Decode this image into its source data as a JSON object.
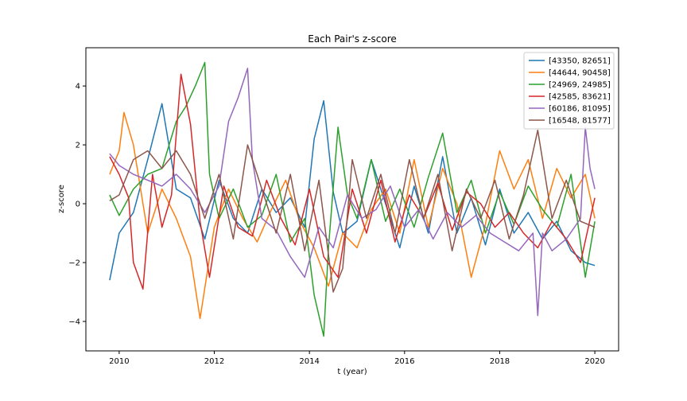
{
  "chart_data": {
    "type": "line",
    "title": "Each Pair's z-score",
    "xlabel": "t (year)",
    "ylabel": "z-score",
    "xlim": [
      2009.3,
      2020.5
    ],
    "ylim": [
      -5.0,
      5.3
    ],
    "xticks": [
      2010,
      2012,
      2014,
      2016,
      2018,
      2020
    ],
    "yticks": [
      -4,
      -2,
      0,
      2,
      4
    ],
    "grid": false,
    "legend_position": "top-right",
    "series": [
      {
        "name": "[43350, 82651]",
        "color": "#1f77b4",
        "x": [
          2009.8,
          2010.0,
          2010.3,
          2010.6,
          2010.9,
          2011.2,
          2011.5,
          2011.8,
          2012.1,
          2012.4,
          2012.7,
          2013.0,
          2013.3,
          2013.6,
          2013.9,
          2014.1,
          2014.3,
          2014.5,
          2014.7,
          2015.0,
          2015.3,
          2015.6,
          2015.9,
          2016.2,
          2016.5,
          2016.8,
          2017.1,
          2017.4,
          2017.7,
          2018.0,
          2018.3,
          2018.6,
          2018.9,
          2019.2,
          2019.5,
          2019.8,
          2020.0
        ],
        "y": [
          -2.6,
          -1.0,
          -0.3,
          1.5,
          3.4,
          0.5,
          0.2,
          -1.2,
          0.8,
          -0.5,
          -1.0,
          0.5,
          -0.3,
          0.2,
          -0.8,
          2.2,
          3.5,
          0.4,
          -1.0,
          -0.6,
          1.5,
          0.0,
          -1.5,
          0.6,
          -1.0,
          1.6,
          -1.0,
          0.2,
          -1.4,
          0.5,
          -1.0,
          -0.3,
          -1.2,
          -0.6,
          -1.6,
          -2.0,
          -2.1
        ]
      },
      {
        "name": "[44644, 90458]",
        "color": "#ff7f0e",
        "x": [
          2009.8,
          2010.0,
          2010.1,
          2010.3,
          2010.6,
          2010.9,
          2011.2,
          2011.5,
          2011.7,
          2012.0,
          2012.3,
          2012.6,
          2012.9,
          2013.2,
          2013.5,
          2013.8,
          2014.1,
          2014.4,
          2014.7,
          2015.0,
          2015.3,
          2015.6,
          2015.9,
          2016.2,
          2016.5,
          2016.8,
          2017.1,
          2017.4,
          2017.7,
          2018.0,
          2018.3,
          2018.6,
          2018.9,
          2019.2,
          2019.5,
          2019.8,
          2020.0
        ],
        "y": [
          1.0,
          1.8,
          3.1,
          2.0,
          -1.0,
          0.5,
          -0.5,
          -1.8,
          -3.9,
          -0.8,
          0.5,
          -0.5,
          -1.3,
          -0.2,
          0.8,
          -0.6,
          -1.5,
          -2.8,
          -1.0,
          -1.5,
          -0.2,
          0.5,
          -1.0,
          1.5,
          -0.8,
          1.2,
          0.0,
          -2.5,
          -0.7,
          1.8,
          0.5,
          1.5,
          -0.5,
          1.2,
          0.2,
          1.0,
          -0.5
        ]
      },
      {
        "name": "[24969, 24985]",
        "color": "#2ca02c",
        "x": [
          2009.8,
          2010.0,
          2010.3,
          2010.6,
          2010.9,
          2011.2,
          2011.4,
          2011.6,
          2011.8,
          2011.9,
          2012.1,
          2012.4,
          2012.7,
          2013.0,
          2013.3,
          2013.6,
          2013.9,
          2014.1,
          2014.3,
          2014.4,
          2014.6,
          2014.8,
          2015.0,
          2015.3,
          2015.6,
          2015.9,
          2016.2,
          2016.5,
          2016.8,
          2016.9,
          2017.1,
          2017.4,
          2017.7,
          2018.0,
          2018.3,
          2018.6,
          2018.9,
          2019.2,
          2019.5,
          2019.8,
          2020.0
        ],
        "y": [
          0.3,
          -0.4,
          0.5,
          1.0,
          1.2,
          2.8,
          3.3,
          4.0,
          4.8,
          1.0,
          -0.5,
          0.5,
          -0.8,
          -0.4,
          1.0,
          -1.3,
          -0.5,
          -3.1,
          -4.5,
          -1.5,
          2.6,
          0.3,
          -0.5,
          1.5,
          -0.6,
          0.5,
          -0.8,
          0.9,
          2.4,
          1.5,
          -0.3,
          0.8,
          -1.0,
          0.4,
          -0.7,
          0.6,
          -0.2,
          -0.8,
          1.0,
          -2.5,
          -0.6
        ]
      },
      {
        "name": "[42585, 83621]",
        "color": "#d62728",
        "x": [
          2009.8,
          2010.0,
          2010.2,
          2010.3,
          2010.5,
          2010.7,
          2010.9,
          2011.1,
          2011.3,
          2011.5,
          2011.7,
          2011.9,
          2012.2,
          2012.5,
          2012.8,
          2013.1,
          2013.4,
          2013.7,
          2014.0,
          2014.3,
          2014.6,
          2014.9,
          2015.2,
          2015.5,
          2015.8,
          2016.1,
          2016.4,
          2016.7,
          2017.0,
          2017.3,
          2017.6,
          2017.9,
          2018.2,
          2018.5,
          2018.8,
          2019.1,
          2019.4,
          2019.7,
          2020.0
        ],
        "y": [
          1.6,
          1.0,
          0.2,
          -2.0,
          -2.9,
          1.0,
          -0.8,
          0.3,
          4.4,
          2.7,
          -0.6,
          -2.5,
          0.6,
          -0.8,
          -1.1,
          0.8,
          -0.5,
          -1.4,
          0.5,
          -1.8,
          -2.5,
          0.5,
          -1.0,
          0.8,
          -1.3,
          0.3,
          -0.5,
          0.7,
          -0.9,
          0.4,
          0.0,
          -0.8,
          -0.3,
          -1.0,
          -1.5,
          -0.6,
          -1.2,
          -2.0,
          0.2
        ]
      },
      {
        "name": "[60186, 81095]",
        "color": "#9467bd",
        "x": [
          2009.8,
          2010.0,
          2010.3,
          2010.6,
          2010.9,
          2011.2,
          2011.5,
          2011.8,
          2012.1,
          2012.3,
          2012.5,
          2012.7,
          2012.8,
          2013.0,
          2013.3,
          2013.6,
          2013.9,
          2014.2,
          2014.5,
          2014.8,
          2015.1,
          2015.4,
          2015.7,
          2016.0,
          2016.3,
          2016.6,
          2016.9,
          2017.2,
          2017.5,
          2017.8,
          2018.1,
          2018.4,
          2018.7,
          2018.8,
          2018.9,
          2019.1,
          2019.4,
          2019.7,
          2019.8,
          2019.9,
          2020.0
        ],
        "y": [
          1.7,
          1.3,
          1.0,
          0.8,
          0.6,
          1.0,
          0.5,
          -0.3,
          0.6,
          2.8,
          3.6,
          4.6,
          1.5,
          -0.5,
          -0.9,
          -1.8,
          -2.5,
          -0.8,
          -1.5,
          0.3,
          -0.5,
          -0.2,
          0.6,
          -0.8,
          -0.2,
          -1.2,
          -0.3,
          -0.8,
          -0.4,
          -1.0,
          -1.3,
          -1.6,
          -1.0,
          -3.8,
          -1.0,
          -1.6,
          -1.2,
          -0.5,
          2.6,
          1.2,
          0.5
        ]
      },
      {
        "name": "[16548, 81577]",
        "color": "#8c564b",
        "x": [
          2009.8,
          2010.0,
          2010.3,
          2010.6,
          2010.9,
          2011.2,
          2011.5,
          2011.8,
          2012.1,
          2012.4,
          2012.7,
          2013.0,
          2013.3,
          2013.6,
          2013.9,
          2014.2,
          2014.5,
          2014.7,
          2014.9,
          2015.2,
          2015.5,
          2015.8,
          2016.1,
          2016.4,
          2016.7,
          2017.0,
          2017.3,
          2017.6,
          2017.9,
          2018.2,
          2018.5,
          2018.8,
          2019.1,
          2019.4,
          2019.7,
          2020.0
        ],
        "y": [
          0.1,
          0.3,
          1.5,
          1.8,
          1.2,
          1.8,
          1.0,
          -0.5,
          1.0,
          -1.2,
          2.0,
          0.5,
          -1.0,
          1.0,
          -1.6,
          0.8,
          -3.0,
          -2.2,
          1.5,
          -0.5,
          1.0,
          -1.0,
          1.5,
          -0.5,
          1.0,
          -1.6,
          0.5,
          -0.5,
          0.8,
          -1.2,
          0.3,
          2.5,
          -0.5,
          0.8,
          -0.6,
          -0.8
        ]
      }
    ]
  }
}
